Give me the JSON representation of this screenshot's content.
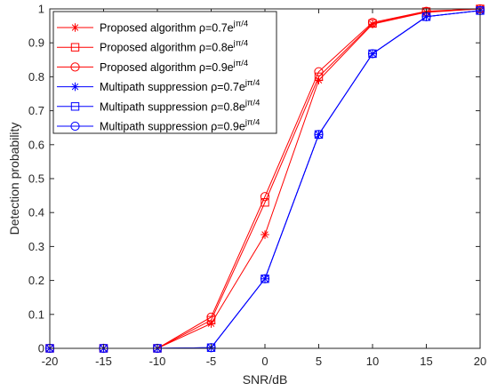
{
  "chart_data": {
    "type": "line",
    "xlabel": "SNR/dB",
    "ylabel": "Detection probability",
    "xlim": [
      -20,
      20
    ],
    "ylim": [
      0,
      1
    ],
    "xticks": [
      -20,
      -15,
      -10,
      -5,
      0,
      5,
      10,
      15,
      20
    ],
    "yticks": [
      0,
      0.1,
      0.2,
      0.3,
      0.4,
      0.5,
      0.6,
      0.7,
      0.8,
      0.9,
      1
    ],
    "grid": false,
    "legend_position": "top-left",
    "x": [
      -20,
      -15,
      -10,
      -5,
      0,
      5,
      10,
      15,
      20
    ],
    "series": [
      {
        "name_main": "Proposed algorithm ρ=0.7e",
        "name_sup": "jπ/4",
        "color": "#ff0000",
        "marker": "asterisk",
        "values": [
          0,
          0,
          0,
          0.073,
          0.335,
          0.79,
          0.955,
          0.99,
          1.0
        ]
      },
      {
        "name_main": "Proposed algorithm ρ=0.8e",
        "name_sup": "jπ/4",
        "color": "#ff0000",
        "marker": "square",
        "values": [
          0,
          0,
          0,
          0.083,
          0.43,
          0.8,
          0.957,
          0.992,
          1.0
        ]
      },
      {
        "name_main": "Proposed algorithm ρ=0.9e",
        "name_sup": "jπ/4",
        "color": "#ff0000",
        "marker": "circle",
        "values": [
          0,
          0,
          0,
          0.092,
          0.447,
          0.815,
          0.96,
          0.993,
          1.0
        ]
      },
      {
        "name_main": "Multipath suppression ρ=0.7e",
        "name_sup": "jπ/4",
        "color": "#0000ff",
        "marker": "asterisk",
        "values": [
          0,
          0,
          0,
          0.002,
          0.205,
          0.63,
          0.868,
          0.977,
          0.995
        ]
      },
      {
        "name_main": "Multipath suppression ρ=0.8e",
        "name_sup": "jπ/4",
        "color": "#0000ff",
        "marker": "square",
        "values": [
          0,
          0,
          0,
          0.002,
          0.205,
          0.63,
          0.868,
          0.977,
          0.995
        ]
      },
      {
        "name_main": "Multipath suppression ρ=0.9e",
        "name_sup": "jπ/4",
        "color": "#0000ff",
        "marker": "circle",
        "values": [
          0,
          0,
          0,
          0.002,
          0.205,
          0.63,
          0.868,
          0.977,
          0.995
        ]
      }
    ]
  }
}
